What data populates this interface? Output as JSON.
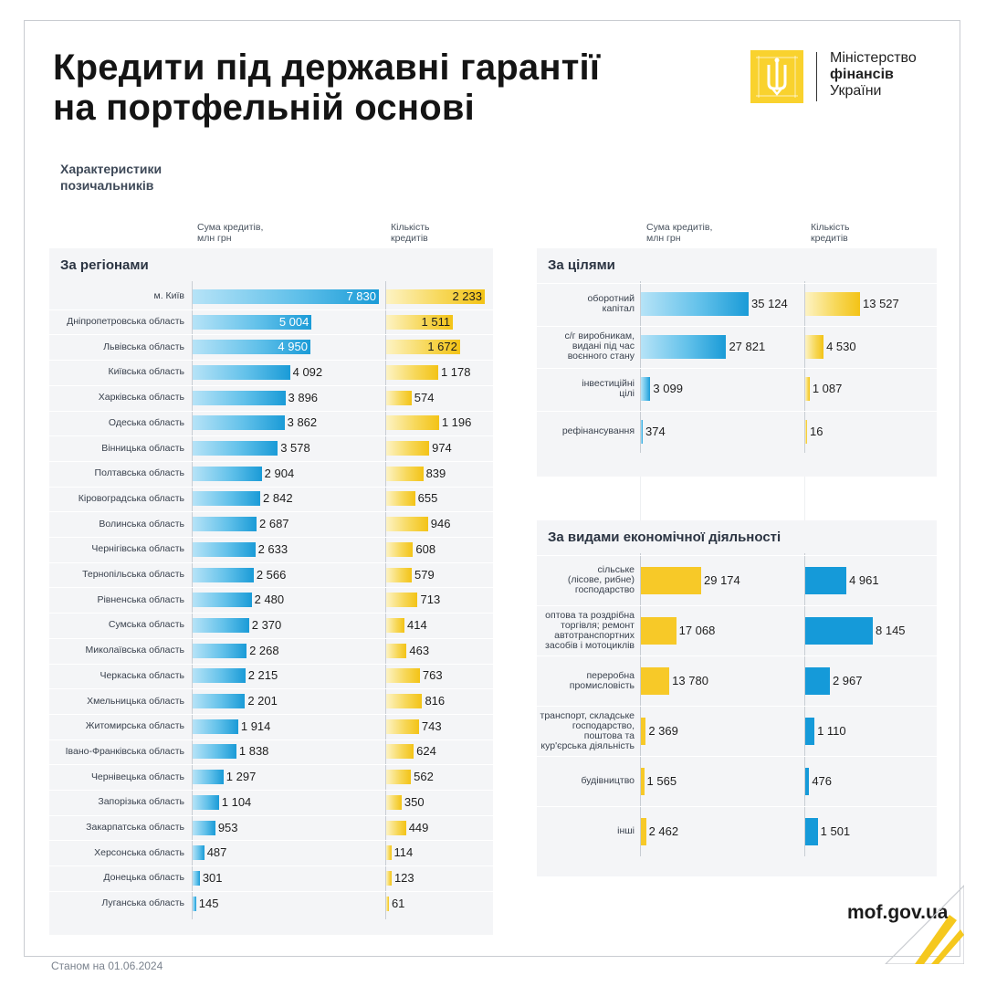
{
  "title_line1": "Кредити під державні гарантії",
  "title_line2": "на портфельній основі",
  "logo": {
    "line1": "Міністерство",
    "line2": "фінансів",
    "line3": "України",
    "icon": "trident-emblem-icon",
    "color": "#f9d22e"
  },
  "subtitle_line1": "Характеристики",
  "subtitle_line2": "позичальників",
  "column_headers": {
    "sum_line1": "Сума кредитів,",
    "sum_line2": "млн грн",
    "count_line1": "Кількість",
    "count_line2": "кредитів"
  },
  "footer_note": "Станом на 01.06.2024",
  "site": "mof.gov.ua",
  "colors": {
    "blue": "#1a9bd7",
    "yellow": "#f3c316"
  },
  "chart_data": [
    {
      "type": "bar",
      "title": "За регіонами",
      "categories": [
        "м. Київ",
        "Дніпропетровська область",
        "Львівська область",
        "Київська область",
        "Харківська область",
        "Одеська область",
        "Вінницька область",
        "Полтавська область",
        "Кіровоградська область",
        "Волинська область",
        "Чернігівська область",
        "Тернопільська область",
        "Рівненська область",
        "Сумська область",
        "Миколаївська область",
        "Черкаська область",
        "Хмельницька область",
        "Житомирська область",
        "Івано-Франківська область",
        "Чернівецька область",
        "Запорізька область",
        "Закарпатська область",
        "Херсонська область",
        "Донецька область",
        "Луганська область"
      ],
      "series": [
        {
          "name": "Сума кредитів, млн грн",
          "values": [
            7830,
            5004,
            4950,
            4092,
            3896,
            3862,
            3578,
            2904,
            2842,
            2687,
            2633,
            2566,
            2480,
            2370,
            2268,
            2215,
            2201,
            1914,
            1838,
            1297,
            1104,
            953,
            487,
            301,
            145
          ],
          "labels": [
            "7 830",
            "5 004",
            "4 950",
            "4 092",
            "3 896",
            "3 862",
            "3 578",
            "2 904",
            "2 842",
            "2 687",
            "2 633",
            "2 566",
            "2 480",
            "2 370",
            "2 268",
            "2 215",
            "2 201",
            "1 914",
            "1 838",
            "1 297",
            "1 104",
            "953",
            "487",
            "301",
            "145"
          ]
        },
        {
          "name": "Кількість кредитів",
          "values": [
            2233,
            1511,
            1672,
            1178,
            574,
            1196,
            974,
            839,
            655,
            946,
            608,
            579,
            713,
            414,
            463,
            763,
            816,
            743,
            624,
            562,
            350,
            449,
            114,
            123,
            61
          ],
          "labels": [
            "2 233",
            "1 511",
            "1 672",
            "1 178",
            "574",
            "1 196",
            "974",
            "839",
            "655",
            "946",
            "608",
            "579",
            "713",
            "414",
            "463",
            "763",
            "816",
            "743",
            "624",
            "562",
            "350",
            "449",
            "114",
            "123",
            "61"
          ]
        }
      ]
    },
    {
      "type": "bar",
      "title": "За цілями",
      "categories": [
        [
          "оборотний",
          "капітал"
        ],
        [
          "с/г виробникам,",
          "видані під час",
          "воєнного стану"
        ],
        [
          "інвестиційні",
          "цілі"
        ],
        [
          "рефінансування"
        ]
      ],
      "series": [
        {
          "name": "Сума кредитів, млн грн",
          "values": [
            35124,
            27821,
            3099,
            374
          ],
          "labels": [
            "35 124",
            "27 821",
            "3 099",
            "374"
          ]
        },
        {
          "name": "Кількість кредитів",
          "values": [
            13527,
            4530,
            1087,
            16
          ],
          "labels": [
            "13 527",
            "4 530",
            "1 087",
            "16"
          ]
        }
      ]
    },
    {
      "type": "bar",
      "title": "За видами економічної діяльності",
      "categories": [
        [
          "сільське",
          "(лісове, рибне)",
          "господарство"
        ],
        [
          "оптова та роздрібна",
          "торгівля; ремонт",
          "автотранспортних",
          "засобів і мотоциклів"
        ],
        [
          "переробна",
          "промисловість"
        ],
        [
          "транспорт, складське",
          "господарство,",
          "поштова та",
          "кур'єрська діяльність"
        ],
        [
          "будівництво"
        ],
        [
          "інші"
        ]
      ],
      "series": [
        {
          "name": "Сума кредитів, млн грн",
          "values": [
            29174,
            17068,
            13780,
            2369,
            1565,
            2462
          ],
          "labels": [
            "29 174",
            "17 068",
            "13 780",
            "2 369",
            "1 565",
            "2 462"
          ]
        },
        {
          "name": "Кількість кредитів",
          "values": [
            4961,
            8145,
            2967,
            1110,
            476,
            1501
          ],
          "labels": [
            "4 961",
            "8 145",
            "2 967",
            "1 110",
            "476",
            "1 501"
          ]
        }
      ]
    }
  ]
}
